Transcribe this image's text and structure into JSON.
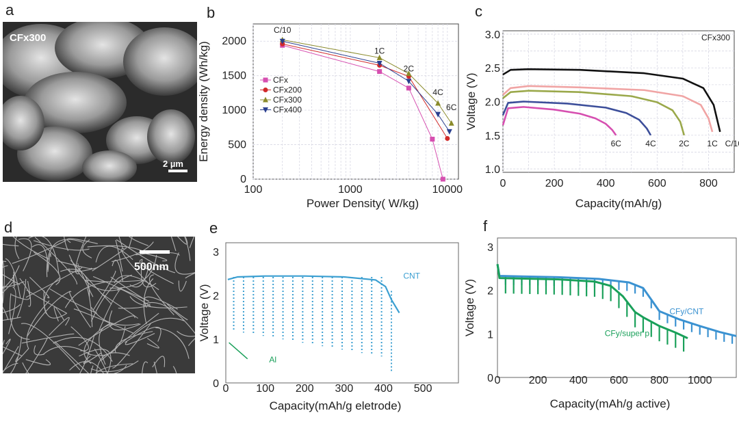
{
  "panels": {
    "a": {
      "letter": "a",
      "image_label": "CFx300",
      "scale_bar": "2 µm"
    },
    "b": {
      "letter": "b"
    },
    "c": {
      "letter": "c"
    },
    "d": {
      "letter": "d",
      "scale_bar": "500nm"
    },
    "e": {
      "letter": "e"
    },
    "f": {
      "letter": "f"
    }
  },
  "chart_data": [
    {
      "id": "b",
      "type": "line",
      "xscale": "log",
      "xlabel": "Power Density( W/kg)",
      "ylabel": "Energy density (Wh/kg)",
      "xlim": [
        100,
        13000
      ],
      "ylim": [
        0,
        2250
      ],
      "xticks": [
        100,
        1000,
        10000
      ],
      "xtick_labels": [
        "100",
        "1000",
        "10000"
      ],
      "yticks": [
        0,
        500,
        1000,
        1500,
        2000
      ],
      "grid": true,
      "legend_position": "left-middle",
      "series": [
        {
          "name": "CFx",
          "color": "#d64fb0",
          "marker": "square",
          "x": [
            200,
            2000,
            4000,
            7000,
            9000
          ],
          "y": [
            1940,
            1560,
            1320,
            580,
            0
          ]
        },
        {
          "name": "CFx200",
          "color": "#d12a2a",
          "marker": "circle",
          "x": [
            200,
            2000,
            4000,
            10000
          ],
          "y": [
            1960,
            1650,
            1490,
            590
          ]
        },
        {
          "name": "CFx300",
          "color": "#8a8a2a",
          "marker": "triangle-up",
          "x": [
            200,
            2000,
            4000,
            8000,
            11000
          ],
          "y": [
            2020,
            1760,
            1530,
            1100,
            810
          ]
        },
        {
          "name": "CFx400",
          "color": "#2a3f8f",
          "marker": "triangle-down",
          "x": [
            200,
            2000,
            4000,
            8000,
            10500
          ],
          "y": [
            2000,
            1680,
            1420,
            940,
            690
          ]
        }
      ],
      "annotations": [
        {
          "text": "C/10",
          "x": 200,
          "y": 2120
        },
        {
          "text": "1C",
          "x": 2000,
          "y": 1820
        },
        {
          "text": "2C",
          "x": 4000,
          "y": 1560
        },
        {
          "text": "4C",
          "x": 8000,
          "y": 1220
        },
        {
          "text": "6C",
          "x": 11000,
          "y": 1000
        }
      ]
    },
    {
      "id": "c",
      "type": "line",
      "xlabel": "Capacity(mAh/g)",
      "ylabel": "Voltage (V)",
      "xlim": [
        0,
        900
      ],
      "ylim": [
        0.95,
        3.05
      ],
      "xticks": [
        0,
        200,
        400,
        600,
        800
      ],
      "yticks": [
        1.0,
        1.5,
        2.0,
        2.5,
        3.0
      ],
      "ytick_labels": [
        "1.0",
        "1.5",
        "2.0",
        "2.5",
        "3.0"
      ],
      "grid": true,
      "corner_label": "CFx300",
      "series": [
        {
          "name": "6C",
          "color": "#d64fb0",
          "x": [
            0,
            20,
            80,
            200,
            300,
            360,
            400,
            425,
            440
          ],
          "y": [
            1.65,
            1.9,
            1.92,
            1.88,
            1.82,
            1.75,
            1.67,
            1.58,
            1.5
          ]
        },
        {
          "name": "4C",
          "color": "#3c4e9a",
          "x": [
            0,
            20,
            80,
            250,
            400,
            480,
            530,
            560,
            575
          ],
          "y": [
            1.8,
            1.98,
            2.0,
            1.97,
            1.91,
            1.83,
            1.73,
            1.6,
            1.5
          ]
        },
        {
          "name": "2C",
          "color": "#9aa84a",
          "x": [
            0,
            30,
            100,
            300,
            500,
            600,
            660,
            690,
            705
          ],
          "y": [
            2.05,
            2.14,
            2.16,
            2.14,
            2.08,
            1.99,
            1.87,
            1.7,
            1.5
          ]
        },
        {
          "name": "1C",
          "color": "#f0a4a4",
          "x": [
            0,
            30,
            100,
            300,
            550,
            700,
            770,
            800,
            815
          ],
          "y": [
            2.1,
            2.2,
            2.23,
            2.21,
            2.17,
            2.08,
            1.95,
            1.75,
            1.55
          ]
        },
        {
          "name": "C/10",
          "color": "#111111",
          "x": [
            0,
            30,
            100,
            300,
            550,
            700,
            780,
            820,
            845
          ],
          "y": [
            2.4,
            2.47,
            2.48,
            2.47,
            2.42,
            2.34,
            2.2,
            1.95,
            1.55
          ]
        }
      ],
      "curve_labels": [
        "6C",
        "4C",
        "2C",
        "1C",
        "C/10"
      ]
    },
    {
      "id": "e",
      "type": "line",
      "xlabel": "Capacity(mAh/g eletrode)",
      "ylabel": "Voltage (V)",
      "xlim": [
        0,
        590
      ],
      "ylim": [
        0,
        3.2
      ],
      "xticks": [
        0,
        100,
        200,
        300,
        400,
        500
      ],
      "yticks": [
        0,
        1,
        2,
        3
      ],
      "grid": false,
      "series": [
        {
          "name": "CNT",
          "color": "#3b9fd1",
          "x": [
            5,
            30,
            100,
            200,
            300,
            380,
            405,
            420,
            440
          ],
          "y": [
            2.36,
            2.42,
            2.44,
            2.44,
            2.42,
            2.35,
            2.2,
            1.9,
            1.6
          ]
        },
        {
          "name": "Al",
          "color": "#1aa05a",
          "x": [
            5,
            15,
            25
          ],
          "y": [
            1.0,
            0.9,
            0.85
          ]
        }
      ],
      "pulse_every_mah": 25,
      "labels": [
        "CNT",
        "Al"
      ]
    },
    {
      "id": "f",
      "type": "line",
      "xlabel": "Capacity(mAh/g active)",
      "ylabel": "Voltage (V)",
      "xlim": [
        0,
        1180
      ],
      "ylim": [
        0,
        3.2
      ],
      "xticks": [
        0,
        200,
        400,
        600,
        800,
        1000
      ],
      "yticks": [
        0,
        1,
        2,
        3
      ],
      "grid": false,
      "series": [
        {
          "name": "CFy/CNT",
          "color": "#3b92d1",
          "x": [
            0,
            10,
            100,
            300,
            500,
            650,
            720,
            770,
            800,
            900,
            1000,
            1100,
            1180
          ],
          "y": [
            2.6,
            2.33,
            2.32,
            2.3,
            2.26,
            2.18,
            2.05,
            1.72,
            1.52,
            1.33,
            1.18,
            1.04,
            0.95
          ]
        },
        {
          "name": "CFy/super p",
          "color": "#1aa05a",
          "x": [
            0,
            10,
            100,
            300,
            480,
            560,
            620,
            680,
            720,
            800,
            880,
            940
          ],
          "y": [
            2.6,
            2.28,
            2.27,
            2.25,
            2.2,
            2.1,
            1.86,
            1.5,
            1.38,
            1.18,
            1.03,
            0.9
          ]
        }
      ],
      "labels": [
        "CFy/CNT",
        "CFy/super p"
      ]
    }
  ]
}
